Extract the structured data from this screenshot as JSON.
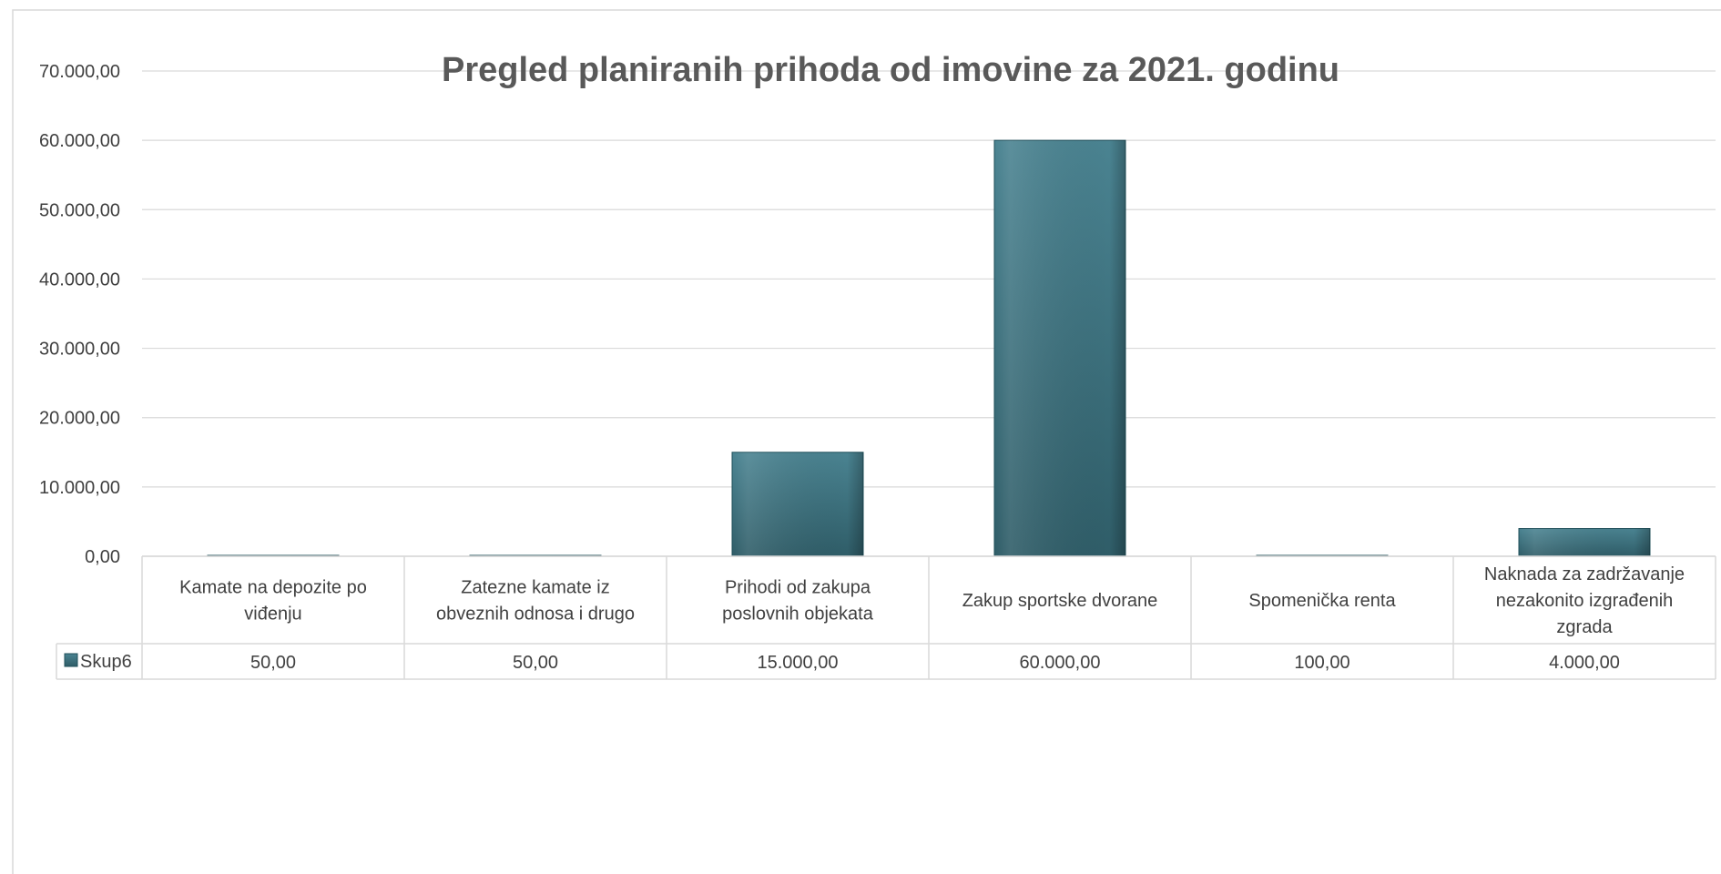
{
  "chart_data": {
    "type": "bar",
    "title": "Pregled planiranih prihoda od imovine za 2021. godinu",
    "categories": [
      [
        "Kamate na depozite po",
        "viđenju"
      ],
      [
        "Zatezne kamate iz",
        "obveznih odnosa i drugo"
      ],
      [
        "Prihodi od zakupa",
        "poslovnih objekata"
      ],
      [
        "Zakup sportske dvorane"
      ],
      [
        "Spomenička renta"
      ],
      [
        "Naknada za zadržavanje",
        "nezakonito izgrađenih",
        "zgrada"
      ]
    ],
    "series": [
      {
        "name": "Skup6",
        "values": [
          50,
          50,
          15000,
          60000,
          100,
          4000
        ],
        "value_labels": [
          "50,00",
          "50,00",
          "15.000,00",
          "60.000,00",
          "100,00",
          "4.000,00"
        ],
        "color": "#3f7583"
      }
    ],
    "y_ticks": [
      "0,00",
      "10.000,00",
      "20.000,00",
      "30.000,00",
      "40.000,00",
      "50.000,00",
      "60.000,00",
      "70.000,00"
    ],
    "ylim": [
      0,
      70000
    ],
    "grid": true,
    "legend": "data-table-left"
  }
}
